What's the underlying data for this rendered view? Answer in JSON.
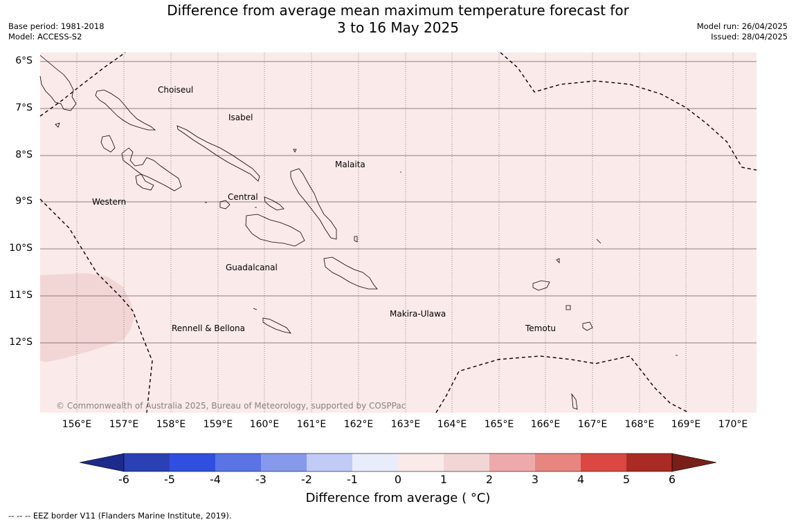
{
  "header": {
    "title_line1": "Difference from average mean maximum temperature forecast for",
    "title_line2": "3 to 16 May 2025",
    "base_period": "Base period: 1981-2018",
    "model": "Model: ACCESS-S2",
    "model_run": "Model run: 26/04/2025",
    "issued": "Issued: 28/04/2025"
  },
  "map": {
    "lat_labels": [
      "6°S",
      "7°S",
      "8°S",
      "9°S",
      "10°S",
      "11°S",
      "12°S"
    ],
    "lon_labels": [
      "156°E",
      "157°E",
      "158°E",
      "159°E",
      "160°E",
      "161°E",
      "162°E",
      "163°E",
      "164°E",
      "165°E",
      "166°E",
      "167°E",
      "168°E",
      "169°E",
      "170°E"
    ],
    "regions": {
      "choiseul": "Choiseul",
      "isabel": "Isabel",
      "malaita": "Malaita",
      "western": "Western",
      "central": "Central",
      "guadalcanal": "Guadalcanal",
      "makira": "Makira-Ulawa",
      "rennell": "Rennell & Bellona",
      "temotu": "Temotu"
    },
    "copyright": "© Commonwealth of Australia 2025, Bureau of Meteorology, supported by COSPPac",
    "background_color": "#fbeaea",
    "anomaly_patch_color": "#f2d6d6",
    "coast_color": "#000000"
  },
  "colorbar": {
    "ticks": [
      "-6",
      "-5",
      "-4",
      "-3",
      "-2",
      "-1",
      "0",
      "1",
      "2",
      "3",
      "4",
      "5",
      "6"
    ],
    "colors": [
      "#1c2a8c",
      "#2a41b5",
      "#2f4fe0",
      "#5a74e6",
      "#8699ec",
      "#c2cbf6",
      "#e9ecfb",
      "#fbeaea",
      "#f2d6d6",
      "#eeaaaa",
      "#e78680",
      "#da4841",
      "#aa2a24",
      "#7a1e1a"
    ],
    "title": "Difference from average ( °C)"
  },
  "footnote": "--  --  -- EEZ border V11 (Flanders Marine Institute, 2019)."
}
